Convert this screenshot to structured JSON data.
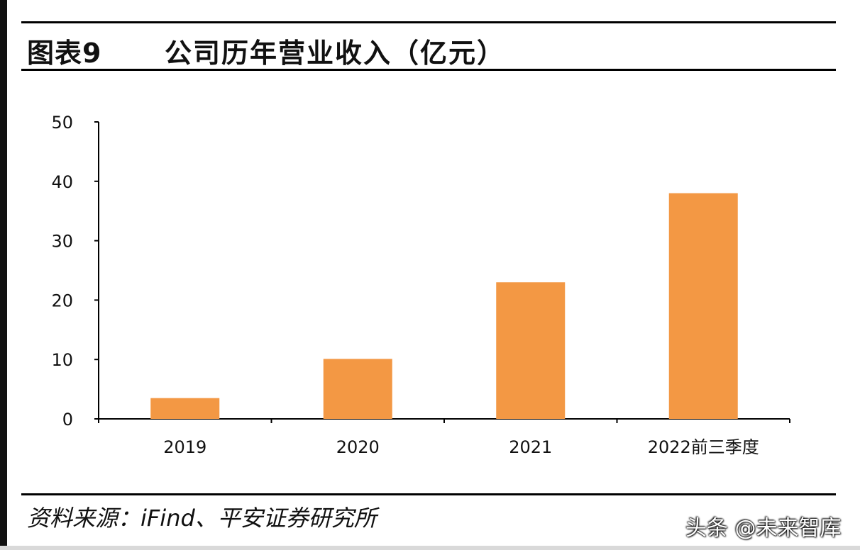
{
  "header": {
    "figure_label": "图表9",
    "title": "公司历年营业收入（亿元）"
  },
  "footer": {
    "source": "资料来源：iFind、平安证券研究所",
    "watermark": "头条 @未来智库"
  },
  "colors": {
    "bar": "#F39844",
    "axis": "#000000"
  },
  "chart_data": {
    "type": "bar",
    "title": "公司历年营业收入（亿元）",
    "xlabel": "",
    "ylabel": "",
    "categories": [
      "2019",
      "2020",
      "2021",
      "2022前三季度"
    ],
    "values": [
      3.5,
      10.1,
      23.0,
      38.0
    ],
    "ylim": [
      0,
      50
    ],
    "yticks": [
      0,
      10,
      20,
      30,
      40,
      50
    ],
    "grid": false,
    "legend": "none"
  }
}
